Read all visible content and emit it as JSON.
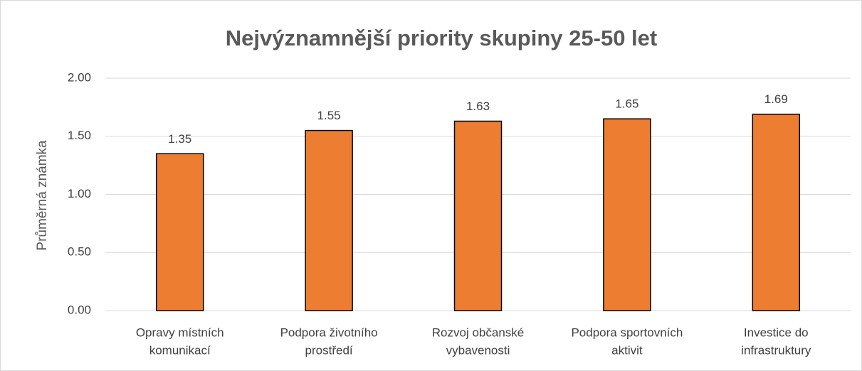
{
  "chart_data": {
    "type": "bar",
    "title": "Nejvýznamnější priority skupiny 25-50 let",
    "y_label": "Průměrná známka",
    "categories": [
      [
        "Opravy místních",
        "komunikací"
      ],
      [
        "Podpora životního",
        "prostředí"
      ],
      [
        "Rozvoj občanské",
        "vybavenosti"
      ],
      [
        "Podpora sportovních",
        "aktivit"
      ],
      [
        "Investice do",
        "infrastruktury"
      ]
    ],
    "values": [
      1.35,
      1.55,
      1.63,
      1.65,
      1.69
    ],
    "color": "#ed7d31",
    "ylim": [
      0,
      2
    ],
    "yticks": [
      {
        "value": 0,
        "label": "0.00"
      },
      {
        "value": 0.5,
        "label": "0.50"
      },
      {
        "value": 1,
        "label": "1.00"
      },
      {
        "value": 1.5,
        "label": "1.50"
      },
      {
        "value": 2,
        "label": "2.00"
      }
    ],
    "grid": true
  }
}
